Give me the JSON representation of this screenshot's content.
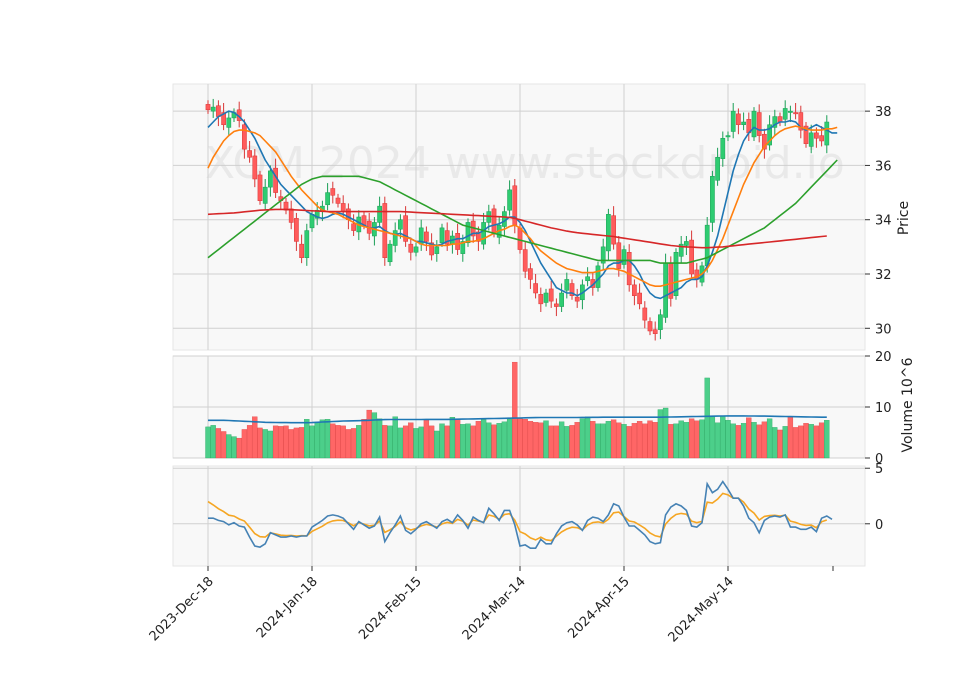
{
  "watermark": "XOM 2024 www.stockdroid.io",
  "colors": {
    "up": "#2ecc71",
    "up_edge": "#1a9e55",
    "down": "#ff5b5b",
    "down_edge": "#d93636",
    "ma_blue": "#1f77b4",
    "ma_orange": "#ff7f0e",
    "ma_green": "#2ca02c",
    "ma_red": "#d62728",
    "macd": "#4682b4",
    "signal": "#f5a623",
    "panel_bg": "#f8f8f8",
    "grid": "#d0d0d0"
  },
  "chart_data": {
    "type": "candlestick",
    "x_tick_labels": [
      "2023-Dec-18",
      "2024-Jan-18",
      "2024-Feb-15",
      "2024-Mar-14",
      "2024-Apr-15",
      "2024-May-14"
    ],
    "x_tick_indices": [
      0,
      20,
      40,
      60,
      80,
      100
    ],
    "n_bars": 120,
    "price_panel": {
      "ylabel": "Price",
      "ylim": [
        29.2,
        39.0
      ],
      "yticks": [
        30,
        32,
        34,
        36,
        38
      ],
      "close": [
        38.05,
        38.15,
        37.8,
        37.5,
        37.75,
        37.95,
        37.65,
        36.6,
        36.3,
        35.5,
        34.7,
        35.2,
        35.8,
        35.0,
        34.7,
        34.35,
        33.9,
        33.2,
        32.6,
        33.6,
        34.2,
        34.35,
        34.5,
        35.0,
        34.9,
        34.6,
        34.3,
        34.0,
        33.6,
        34.1,
        33.8,
        33.5,
        33.9,
        34.5,
        32.6,
        33.1,
        33.6,
        34.0,
        33.2,
        32.8,
        33.0,
        33.7,
        33.2,
        32.7,
        33.0,
        33.7,
        33.1,
        33.4,
        32.9,
        33.2,
        33.9,
        33.4,
        33.2,
        33.9,
        34.3,
        33.5,
        33.8,
        34.3,
        35.1,
        33.8,
        32.9,
        32.1,
        31.8,
        31.3,
        30.9,
        31.3,
        31.0,
        30.8,
        31.3,
        31.8,
        31.2,
        31.0,
        31.6,
        31.9,
        31.5,
        32.3,
        33.0,
        34.2,
        33.1,
        32.2,
        32.9,
        31.6,
        31.2,
        30.9,
        30.3,
        29.9,
        29.8,
        30.5,
        32.4,
        31.1,
        32.8,
        33.1,
        33.2,
        32.0,
        31.8,
        32.3,
        33.8,
        35.6,
        36.3,
        37.0,
        37.1,
        38.0,
        37.5,
        37.6,
        37.2,
        38.0,
        37.1,
        36.6,
        37.5,
        37.8,
        37.6,
        38.1,
        38.0,
        37.9,
        37.3,
        36.8,
        37.2,
        37.0,
        36.9,
        37.6,
        38.0,
        37.7
      ]
    },
    "volume_panel": {
      "ylabel": "Volume  10^6",
      "ylim": [
        0,
        20
      ],
      "yticks": [
        0,
        10,
        20
      ],
      "volume": [
        6.1,
        6.4,
        5.8,
        5.2,
        4.6,
        4.2,
        3.9,
        5.6,
        6.4,
        8.1,
        5.9,
        5.6,
        5.3,
        6.3,
        6.2,
        6.3,
        5.6,
        5.9,
        6.0,
        7.6,
        6.3,
        7.0,
        7.5,
        7.6,
        6.7,
        6.4,
        6.3,
        5.6,
        5.8,
        6.4,
        7.6,
        9.4,
        8.9,
        7.7,
        6.4,
        6.3,
        8.1,
        5.9,
        6.3,
        6.9,
        5.8,
        6.1,
        7.4,
        6.3,
        5.3,
        6.7,
        6.3,
        8.0,
        7.5,
        6.6,
        6.7,
        6.3,
        7.2,
        7.5,
        6.9,
        6.5,
        6.8,
        7.1,
        7.6,
        18.8,
        7.7,
        7.6,
        7.2,
        7.0,
        6.9,
        7.3,
        6.3,
        6.3,
        7.1,
        6.2,
        6.4,
        7.0,
        7.7,
        8.1,
        7.2,
        6.7,
        6.7,
        7.2,
        7.5,
        6.9,
        6.6,
        6.2,
        6.8,
        7.2,
        6.7,
        7.3,
        7.0,
        9.5,
        9.8,
        6.6,
        6.7,
        7.3,
        7.0,
        7.7,
        7.3,
        7.5,
        15.7,
        8.2,
        6.9,
        8.2,
        7.4,
        6.7,
        6.4,
        6.8,
        7.9,
        7.0,
        6.5,
        7.1,
        7.7,
        6.0,
        5.5,
        6.2,
        8.1,
        6.0,
        6.3,
        6.8,
        6.6,
        6.3,
        6.9,
        7.4,
        5.8,
        6.5
      ],
      "volume_ma": [
        7.4,
        7.4,
        7.4,
        7.4,
        7.35,
        7.3,
        7.25,
        7.2,
        7.15,
        7.1,
        7.05,
        7.0,
        6.98,
        6.96,
        6.95,
        6.94,
        6.93,
        6.92,
        6.92,
        6.93,
        6.95,
        7.0,
        7.05,
        7.1,
        7.15,
        7.2,
        7.25,
        7.28,
        7.3,
        7.32,
        7.35,
        7.4,
        7.45,
        7.5,
        7.52,
        7.54,
        7.55,
        7.55,
        7.55,
        7.55,
        7.55,
        7.55,
        7.56,
        7.56,
        7.56,
        7.56,
        7.57,
        7.58,
        7.6,
        7.62,
        7.64,
        7.66,
        7.68,
        7.7,
        7.72,
        7.74,
        7.76,
        7.78,
        7.8,
        7.82,
        7.85,
        7.88,
        7.9,
        7.92,
        7.94,
        7.95,
        7.95,
        7.95,
        7.95,
        7.95,
        7.95,
        7.95,
        7.96,
        7.97,
        7.98,
        7.99,
        8.0,
        8.0,
        8.0,
        8.0,
        8.0,
        8.0,
        8.0,
        8.0,
        8.0,
        8.0,
        8.0,
        8.0,
        8.02,
        8.04,
        8.06,
        8.08,
        8.1,
        8.12,
        8.14,
        8.16,
        8.18,
        8.2,
        8.22,
        8.24,
        8.25,
        8.25,
        8.25,
        8.25,
        8.24,
        8.23,
        8.22,
        8.21,
        8.2,
        8.18,
        8.16,
        8.14,
        8.12,
        8.1,
        8.08,
        8.06,
        8.04,
        8.02,
        8.0,
        8.0
      ]
    },
    "macd_panel": {
      "ylim": [
        -3.8,
        5.2
      ],
      "yticks": [
        0,
        5
      ],
      "macd": [
        0.5,
        0.5,
        0.3,
        0.2,
        -0.1,
        0.1,
        -0.2,
        -0.3,
        -1.2,
        -2.0,
        -2.1,
        -1.8,
        -0.8,
        -1.0,
        -1.2,
        -1.2,
        -1.1,
        -1.2,
        -1.1,
        -1.1,
        -0.3,
        0.0,
        0.3,
        0.7,
        0.8,
        0.7,
        0.5,
        0.0,
        -0.5,
        0.2,
        -0.1,
        -0.4,
        -0.2,
        0.6,
        -1.6,
        -0.8,
        -0.1,
        0.7,
        -0.6,
        -0.9,
        -0.5,
        0.0,
        0.2,
        -0.1,
        -0.4,
        0.2,
        0.4,
        0.1,
        0.8,
        0.3,
        -0.4,
        0.6,
        0.3,
        0.1,
        1.4,
        0.9,
        0.3,
        1.2,
        1.2,
        -0.1,
        -2.0,
        -1.9,
        -2.2,
        -2.2,
        -1.4,
        -1.8,
        -1.8,
        -0.9,
        -0.2,
        0.1,
        0.2,
        -0.1,
        -0.6,
        0.3,
        0.6,
        0.5,
        0.2,
        0.8,
        1.8,
        1.6,
        0.6,
        -0.2,
        -0.2,
        -0.6,
        -1.0,
        -1.6,
        -1.8,
        -1.7,
        0.8,
        1.5,
        1.8,
        1.6,
        1.2,
        -0.2,
        -0.3,
        0.1,
        3.6,
        2.8,
        3.1,
        3.8,
        3.1,
        2.3,
        2.3,
        1.6,
        0.5,
        0.1,
        -0.8,
        0.3,
        0.6,
        0.7,
        0.6,
        0.8,
        -0.3,
        -0.3,
        -0.5,
        -0.5,
        -0.3,
        -0.7,
        0.5,
        0.7,
        0.4
      ]
    },
    "moving_averages": {
      "blue": [
        37.4,
        37.6,
        37.8,
        37.9,
        38.0,
        37.95,
        37.8,
        37.6,
        37.3,
        37.0,
        36.6,
        36.2,
        35.9,
        35.6,
        35.3,
        35.1,
        34.9,
        34.7,
        34.5,
        34.3,
        34.2,
        34.1,
        34.05,
        34.1,
        34.2,
        34.25,
        34.2,
        34.1,
        34.0,
        33.9,
        33.8,
        33.7,
        33.7,
        33.75,
        33.6,
        33.5,
        33.45,
        33.5,
        33.4,
        33.3,
        33.2,
        33.2,
        33.15,
        33.1,
        33.05,
        33.1,
        33.2,
        33.25,
        33.3,
        33.3,
        33.4,
        33.5,
        33.5,
        33.6,
        33.75,
        33.8,
        33.85,
        33.95,
        34.1,
        34.1,
        33.9,
        33.6,
        33.2,
        32.8,
        32.4,
        32.1,
        31.8,
        31.5,
        31.4,
        31.3,
        31.3,
        31.2,
        31.3,
        31.45,
        31.6,
        31.8,
        32.0,
        32.3,
        32.4,
        32.4,
        32.5,
        32.5,
        32.3,
        32.0,
        31.6,
        31.3,
        31.15,
        31.1,
        31.2,
        31.3,
        31.4,
        31.5,
        31.7,
        31.8,
        31.8,
        31.9,
        32.3,
        32.8,
        33.4,
        34.2,
        35.0,
        35.8,
        36.4,
        36.9,
        37.2,
        37.4,
        37.3,
        37.3,
        37.35,
        37.5,
        37.6,
        37.6,
        37.65,
        37.6,
        37.4,
        37.3,
        37.4,
        37.5,
        37.4,
        37.3,
        37.2,
        37.2
      ],
      "orange": [
        35.9,
        36.3,
        36.6,
        36.9,
        37.1,
        37.25,
        37.3,
        37.3,
        37.25,
        37.2,
        37.1,
        36.9,
        36.7,
        36.5,
        36.2,
        35.9,
        35.6,
        35.35,
        35.1,
        34.9,
        34.7,
        34.5,
        34.35,
        34.3,
        34.25,
        34.2,
        34.1,
        34.0,
        33.9,
        33.8,
        33.75,
        33.7,
        33.65,
        33.6,
        33.55,
        33.5,
        33.45,
        33.4,
        33.35,
        33.3,
        33.2,
        33.1,
        33.05,
        33.05,
        33.05,
        33.05,
        33.05,
        33.1,
        33.1,
        33.15,
        33.2,
        33.2,
        33.25,
        33.3,
        33.4,
        33.5,
        33.6,
        33.65,
        33.75,
        33.8,
        33.7,
        33.5,
        33.3,
        33.05,
        32.85,
        32.7,
        32.55,
        32.4,
        32.3,
        32.2,
        32.15,
        32.1,
        32.05,
        32.05,
        32.05,
        32.1,
        32.15,
        32.2,
        32.2,
        32.15,
        32.1,
        32.0,
        31.9,
        31.8,
        31.7,
        31.6,
        31.55,
        31.55,
        31.6,
        31.65,
        31.7,
        31.75,
        31.8,
        31.85,
        31.9,
        32.0,
        32.2,
        32.5,
        32.9,
        33.3,
        33.8,
        34.3,
        34.8,
        35.3,
        35.7,
        36.1,
        36.4,
        36.7,
        36.9,
        37.1,
        37.25,
        37.35,
        37.4,
        37.45,
        37.4,
        37.35,
        37.3,
        37.3,
        37.3,
        37.35,
        37.35,
        37.4
      ],
      "green": [
        32.6,
        32.75,
        32.9,
        33.05,
        33.2,
        33.35,
        33.5,
        33.65,
        33.8,
        33.95,
        34.1,
        34.25,
        34.4,
        34.55,
        34.7,
        34.85,
        35.0,
        35.15,
        35.3,
        35.4,
        35.5,
        35.55,
        35.6,
        35.6,
        35.6,
        35.6,
        35.6,
        35.6,
        35.6,
        35.6,
        35.55,
        35.5,
        35.45,
        35.4,
        35.3,
        35.2,
        35.1,
        35.0,
        34.9,
        34.8,
        34.7,
        34.6,
        34.5,
        34.4,
        34.3,
        34.2,
        34.1,
        34.0,
        33.9,
        33.8,
        33.75,
        33.7,
        33.65,
        33.6,
        33.55,
        33.5,
        33.45,
        33.4,
        33.35,
        33.3,
        33.25,
        33.2,
        33.15,
        33.1,
        33.05,
        33.0,
        32.95,
        32.9,
        32.85,
        32.8,
        32.75,
        32.7,
        32.65,
        32.6,
        32.55,
        32.5,
        32.5,
        32.5,
        32.5,
        32.5,
        32.5,
        32.5,
        32.5,
        32.5,
        32.5,
        32.5,
        32.45,
        32.4,
        32.4,
        32.4,
        32.4,
        32.4,
        32.4,
        32.45,
        32.5,
        32.55,
        32.6,
        32.7,
        32.8,
        32.9,
        33.0,
        33.1,
        33.2,
        33.3,
        33.4,
        33.5,
        33.6,
        33.7,
        33.85,
        34.0,
        34.15,
        34.3,
        34.45,
        34.6,
        34.8,
        35.0,
        35.2,
        35.4,
        35.6,
        35.8,
        36.0,
        36.2
      ],
      "red": [
        34.2,
        34.21,
        34.22,
        34.23,
        34.24,
        34.25,
        34.27,
        34.29,
        34.31,
        34.33,
        34.35,
        34.36,
        34.37,
        34.38,
        34.38,
        34.38,
        34.37,
        34.36,
        34.35,
        34.34,
        34.33,
        34.32,
        34.31,
        34.3,
        34.3,
        34.3,
        34.3,
        34.3,
        34.3,
        34.3,
        34.3,
        34.3,
        34.3,
        34.3,
        34.3,
        34.3,
        34.3,
        34.3,
        34.29,
        34.28,
        34.27,
        34.26,
        34.25,
        34.24,
        34.23,
        34.22,
        34.21,
        34.2,
        34.19,
        34.18,
        34.17,
        34.16,
        34.15,
        34.14,
        34.13,
        34.12,
        34.11,
        34.1,
        34.08,
        34.05,
        34.0,
        33.95,
        33.9,
        33.85,
        33.8,
        33.75,
        33.7,
        33.66,
        33.62,
        33.58,
        33.55,
        33.52,
        33.5,
        33.48,
        33.46,
        33.44,
        33.42,
        33.4,
        33.38,
        33.35,
        33.32,
        33.29,
        33.26,
        33.23,
        33.2,
        33.17,
        33.14,
        33.11,
        33.08,
        33.05,
        33.03,
        33.01,
        33.0,
        32.99,
        32.98,
        32.97,
        32.97,
        32.98,
        32.99,
        33.0,
        33.02,
        33.04,
        33.06,
        33.08,
        33.1,
        33.12,
        33.14,
        33.16,
        33.18,
        33.2,
        33.22,
        33.24,
        33.26,
        33.28,
        33.3,
        33.32,
        33.34,
        33.36,
        33.38,
        33.4
      ]
    }
  }
}
